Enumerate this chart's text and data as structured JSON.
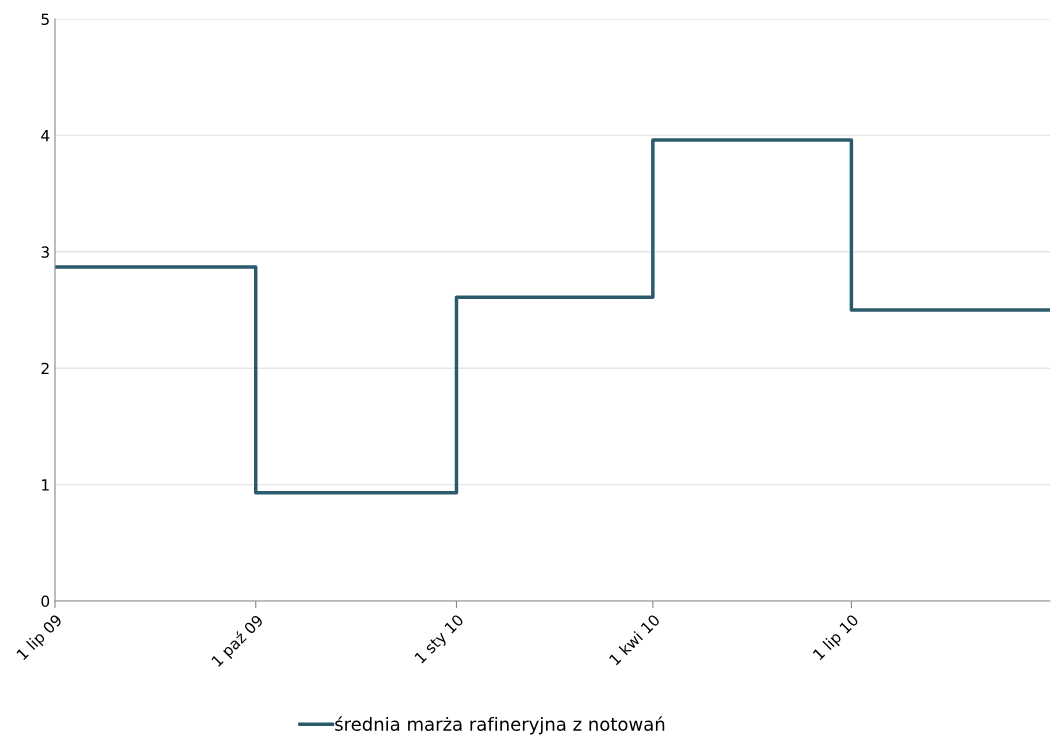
{
  "chart_data": {
    "type": "step",
    "x": [
      "2009-07-01",
      "2009-10-01",
      "2010-01-01",
      "2010-04-01",
      "2010-07-01",
      "2010-09-30"
    ],
    "series": [
      {
        "name": "średnia marża rafineryjna z notowań",
        "color": "#2b5a6a",
        "values": [
          2.87,
          0.93,
          2.61,
          3.96,
          2.5,
          2.5
        ]
      }
    ],
    "xlim": [
      "2009-07-01",
      "2010-09-30"
    ],
    "xticks": [
      {
        "value": "2009-07-01",
        "label": "1 lip 09"
      },
      {
        "value": "2009-10-01",
        "label": "1 paź 09"
      },
      {
        "value": "2010-01-01",
        "label": "1 sty 10"
      },
      {
        "value": "2010-04-01",
        "label": "1 kwi 10"
      },
      {
        "value": "2010-07-01",
        "label": "1 lip 10"
      }
    ],
    "ylim": [
      0,
      5
    ],
    "yticks": [
      0,
      1,
      2,
      3,
      4,
      5
    ],
    "grid": "y",
    "legend": "bottom",
    "line_style": "solid"
  }
}
